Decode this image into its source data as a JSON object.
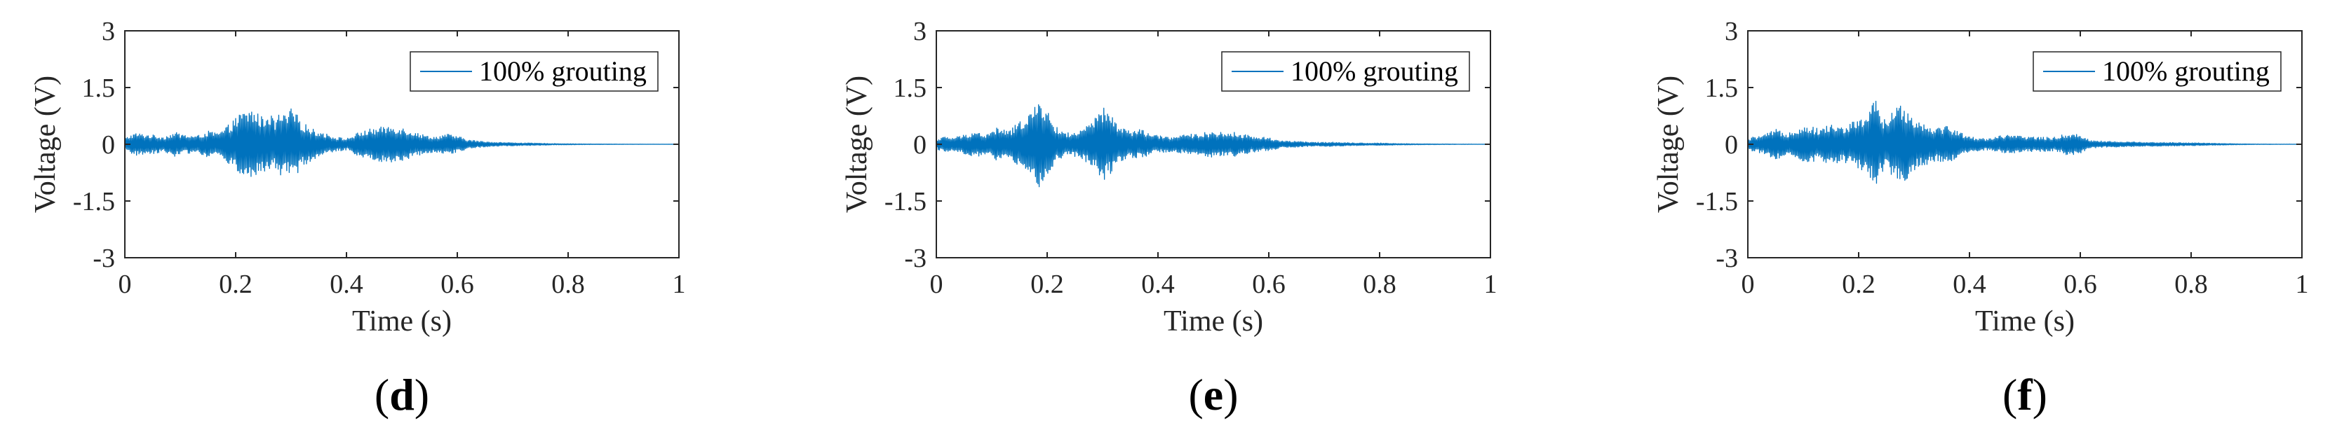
{
  "figure": {
    "layout": "three panels in a row",
    "colors": {
      "series": "#0072BD",
      "axes": "#262626",
      "background": "#ffffff"
    }
  },
  "chart_data": [
    {
      "panel_id": "d",
      "panel_label": {
        "open": "(",
        "letter": "d",
        "close": ")"
      },
      "type": "line",
      "description": "Voltage time history of a dense, symmetric oscillation (envelope shown)",
      "title": "",
      "xlabel": "Time (s)",
      "ylabel": "Voltage (V)",
      "xlim": [
        0,
        1
      ],
      "ylim": [
        -3,
        3
      ],
      "xticks": [
        0,
        0.2,
        0.4,
        0.6,
        0.8,
        1
      ],
      "xtick_labels": [
        "0",
        "0.2",
        "0.4",
        "0.6",
        "0.8",
        "1"
      ],
      "yticks": [
        3,
        1.5,
        0,
        -1.5,
        -3
      ],
      "ytick_labels": [
        "3",
        "1.5",
        "0",
        "-1.5",
        "-3"
      ],
      "grid": false,
      "legend": {
        "entries": [
          "100% grouting"
        ],
        "location": "top-right"
      },
      "series": [
        {
          "name": "100% grouting",
          "envelope_time": [
            0,
            0.01,
            0.02,
            0.03,
            0.05,
            0.07,
            0.09,
            0.11,
            0.13,
            0.15,
            0.17,
            0.19,
            0.21,
            0.23,
            0.25,
            0.26,
            0.27,
            0.28,
            0.29,
            0.3,
            0.31,
            0.32,
            0.33,
            0.34,
            0.36,
            0.38,
            0.4,
            0.42,
            0.44,
            0.46,
            0.48,
            0.5,
            0.52,
            0.54,
            0.56,
            0.58,
            0.6,
            0.62,
            0.65,
            0.68,
            0.71,
            0.74,
            0.77,
            0.8,
            0.83,
            0.86,
            0.9,
            1.0
          ],
          "envelope_amplitude": [
            0.15,
            0.25,
            0.3,
            0.28,
            0.25,
            0.2,
            0.32,
            0.25,
            0.22,
            0.35,
            0.3,
            0.55,
            0.85,
            0.95,
            0.7,
            0.9,
            0.6,
            0.85,
            0.75,
            0.95,
            0.8,
            0.6,
            0.5,
            0.4,
            0.3,
            0.2,
            0.15,
            0.3,
            0.4,
            0.45,
            0.5,
            0.45,
            0.35,
            0.25,
            0.2,
            0.28,
            0.22,
            0.12,
            0.07,
            0.05,
            0.04,
            0.03,
            0.02,
            0.015,
            0.01,
            0.008,
            0.005,
            0.003
          ]
        }
      ]
    },
    {
      "panel_id": "e",
      "panel_label": {
        "open": "(",
        "letter": "e",
        "close": ")"
      },
      "type": "line",
      "description": "Voltage time history of a dense, symmetric oscillation (envelope shown)",
      "title": "",
      "xlabel": "Time (s)",
      "ylabel": "Voltage (V)",
      "xlim": [
        0,
        1
      ],
      "ylim": [
        -3,
        3
      ],
      "xticks": [
        0,
        0.2,
        0.4,
        0.6,
        0.8,
        1
      ],
      "xtick_labels": [
        "0",
        "0.2",
        "0.4",
        "0.6",
        "0.8",
        "1"
      ],
      "yticks": [
        3,
        1.5,
        0,
        -1.5,
        -3
      ],
      "ytick_labels": [
        "3",
        "1.5",
        "0",
        "-1.5",
        "-3"
      ],
      "grid": false,
      "legend": {
        "entries": [
          "100% grouting"
        ],
        "location": "top-right"
      },
      "series": [
        {
          "name": "100% grouting",
          "envelope_time": [
            0,
            0.01,
            0.03,
            0.05,
            0.07,
            0.09,
            0.11,
            0.13,
            0.15,
            0.17,
            0.18,
            0.19,
            0.2,
            0.21,
            0.22,
            0.24,
            0.26,
            0.28,
            0.29,
            0.3,
            0.31,
            0.32,
            0.33,
            0.35,
            0.37,
            0.39,
            0.42,
            0.45,
            0.48,
            0.5,
            0.52,
            0.54,
            0.56,
            0.58,
            0.6,
            0.62,
            0.65,
            0.68,
            0.71,
            0.75,
            0.78,
            0.8,
            0.83,
            0.86,
            0.9,
            0.95,
            1.0
          ],
          "envelope_amplitude": [
            0.12,
            0.2,
            0.18,
            0.25,
            0.35,
            0.25,
            0.45,
            0.35,
            0.6,
            0.9,
            1.0,
            1.25,
            0.9,
            0.6,
            0.4,
            0.3,
            0.35,
            0.6,
            0.75,
            1.0,
            0.85,
            0.7,
            0.5,
            0.35,
            0.4,
            0.25,
            0.2,
            0.25,
            0.3,
            0.35,
            0.3,
            0.32,
            0.25,
            0.2,
            0.18,
            0.1,
            0.08,
            0.05,
            0.06,
            0.04,
            0.03,
            0.035,
            0.02,
            0.015,
            0.01,
            0.005,
            0.003
          ]
        }
      ]
    },
    {
      "panel_id": "f",
      "panel_label": {
        "open": "(",
        "letter": "f",
        "close": ")"
      },
      "type": "line",
      "description": "Voltage time history of a dense, symmetric oscillation (envelope shown)",
      "title": "",
      "xlabel": "Time (s)",
      "ylabel": "Voltage (V)",
      "xlim": [
        0,
        1
      ],
      "ylim": [
        -3,
        3
      ],
      "xticks": [
        0,
        0.2,
        0.4,
        0.6,
        0.8,
        1
      ],
      "xtick_labels": [
        "0",
        "0.2",
        "0.4",
        "0.6",
        "0.8",
        "1"
      ],
      "yticks": [
        3,
        1.5,
        0,
        -1.5,
        -3
      ],
      "ytick_labels": [
        "3",
        "1.5",
        "0",
        "-1.5",
        "-3"
      ],
      "grid": false,
      "legend": {
        "entries": [
          "100% grouting"
        ],
        "location": "top-right"
      },
      "series": [
        {
          "name": "100% grouting",
          "envelope_time": [
            0,
            0.01,
            0.03,
            0.05,
            0.07,
            0.09,
            0.11,
            0.13,
            0.15,
            0.17,
            0.19,
            0.21,
            0.22,
            0.23,
            0.24,
            0.25,
            0.26,
            0.27,
            0.28,
            0.29,
            0.3,
            0.32,
            0.34,
            0.36,
            0.38,
            0.4,
            0.43,
            0.46,
            0.49,
            0.52,
            0.55,
            0.58,
            0.6,
            0.62,
            0.65,
            0.7,
            0.75,
            0.8,
            0.83,
            0.86,
            0.9,
            0.95,
            1.0
          ],
          "envelope_amplitude": [
            0.12,
            0.2,
            0.25,
            0.4,
            0.3,
            0.45,
            0.5,
            0.4,
            0.55,
            0.45,
            0.6,
            0.75,
            0.9,
            1.25,
            0.8,
            0.6,
            0.85,
            1.0,
            1.15,
            0.9,
            0.7,
            0.55,
            0.45,
            0.5,
            0.35,
            0.2,
            0.15,
            0.25,
            0.22,
            0.2,
            0.18,
            0.3,
            0.25,
            0.1,
            0.08,
            0.06,
            0.05,
            0.04,
            0.03,
            0.02,
            0.01,
            0.005,
            0.003
          ]
        }
      ]
    }
  ]
}
